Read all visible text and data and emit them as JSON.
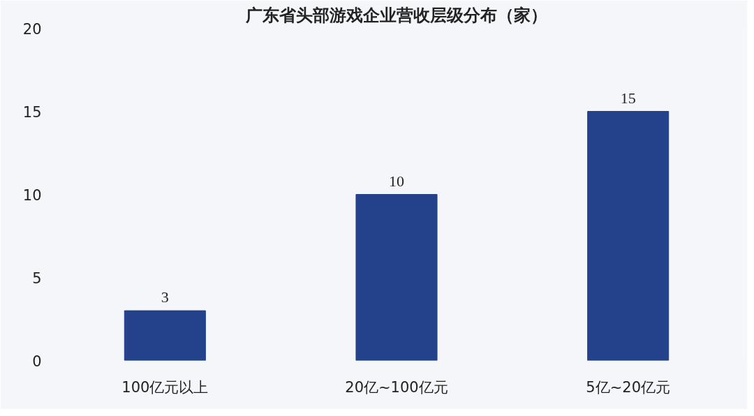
{
  "chart_data": {
    "type": "bar",
    "title": "广东省头部游戏企业营收层级分布（家）",
    "categories": [
      "100亿元以上",
      "20亿~100亿元",
      "5亿~20亿元"
    ],
    "values": [
      3,
      10,
      15
    ],
    "color": "#24418c",
    "ylim": [
      0,
      20
    ],
    "yticks": [
      0,
      5,
      10,
      15,
      20
    ],
    "grid": false,
    "data_labels": true
  }
}
